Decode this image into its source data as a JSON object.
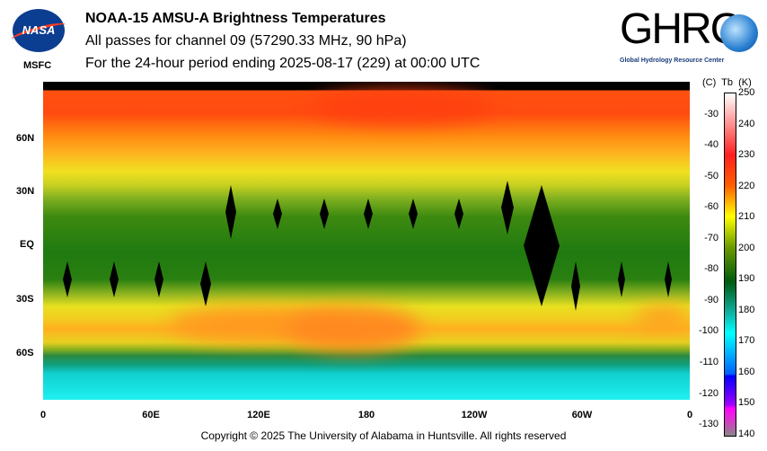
{
  "header": {
    "title": "NOAA-15 AMSU-A Brightness Temperatures",
    "subtitle": "All passes for channel 09 (57290.33 MHz, 90 hPa)",
    "period": "For the 24-hour period ending 2025-08-17 (229) at 00:00 UTC"
  },
  "logos": {
    "nasa": "NASA",
    "msfc": "MSFC",
    "ghrc": "GHRC",
    "ghrc_full": "Global Hydrology Resource Center"
  },
  "map": {
    "lat_labels": [
      "60N",
      "30N",
      "EQ",
      "30S",
      "60S"
    ],
    "lon_labels": [
      "0",
      "60E",
      "120E",
      "180",
      "120W",
      "60W",
      "0"
    ]
  },
  "colorbar": {
    "header": "(C)  Tb  (K)",
    "kelvin": [
      "250",
      "240",
      "230",
      "220",
      "210",
      "200",
      "190",
      "180",
      "170",
      "160",
      "150",
      "140"
    ],
    "celsius": [
      "-30",
      "-40",
      "-50",
      "-60",
      "-70",
      "-80",
      "-90",
      "-100",
      "-110",
      "-120",
      "-130"
    ],
    "range_k": [
      140,
      250
    ]
  },
  "footer": {
    "copyright": "Copyright © 2025 The University of Alabama in Huntsville.  All rights reserved"
  }
}
